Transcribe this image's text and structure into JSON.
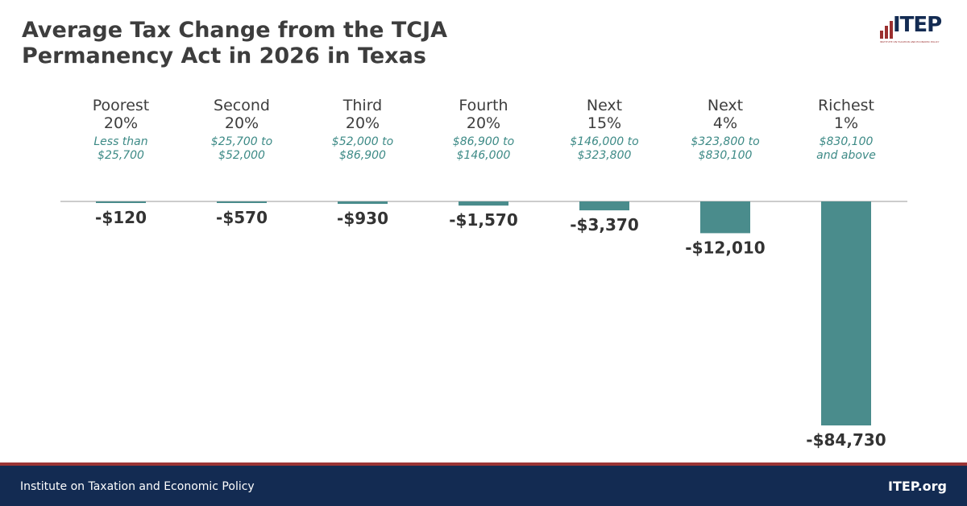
{
  "chart_data": {
    "type": "bar",
    "title": "Average Tax Change from the TCJA Permanency Act in 2026 in Texas",
    "categories": [
      {
        "name": "Poorest",
        "pct": "20%",
        "range": [
          "Less than",
          "$25,700"
        ]
      },
      {
        "name": "Second",
        "pct": "20%",
        "range": [
          "$25,700 to",
          "$52,000"
        ]
      },
      {
        "name": "Third",
        "pct": "20%",
        "range": [
          "$52,000 to",
          "$86,900"
        ]
      },
      {
        "name": "Fourth",
        "pct": "20%",
        "range": [
          "$86,900 to",
          "$146,000"
        ]
      },
      {
        "name": "Next",
        "pct": "15%",
        "range": [
          "$146,000 to",
          "$323,800"
        ]
      },
      {
        "name": "Next",
        "pct": "4%",
        "range": [
          "$323,800 to",
          "$830,100"
        ]
      },
      {
        "name": "Richest",
        "pct": "1%",
        "range": [
          "$830,100",
          "and above"
        ]
      }
    ],
    "values": [
      -120,
      -570,
      -930,
      -1570,
      -3370,
      -12010,
      -84730
    ],
    "labels": [
      "-$120",
      "-$570",
      "-$930",
      "-$1,570",
      "-$3,370",
      "-$12,010",
      "-$84,730"
    ],
    "ylim": [
      -84730,
      0
    ],
    "grid": false
  },
  "colors": {
    "bar": "#4a8c8c",
    "title": "#3d3d3d",
    "range": "#3d8a86",
    "footer": "#132b52",
    "stripe": "#9b3535"
  },
  "logo": {
    "text": "ITEP",
    "subtitle": "INSTITUTE ON TAXATION AND ECONOMIC POLICY"
  },
  "footer": {
    "org": "Institute on Taxation and Economic Policy",
    "site": "ITEP.org"
  }
}
